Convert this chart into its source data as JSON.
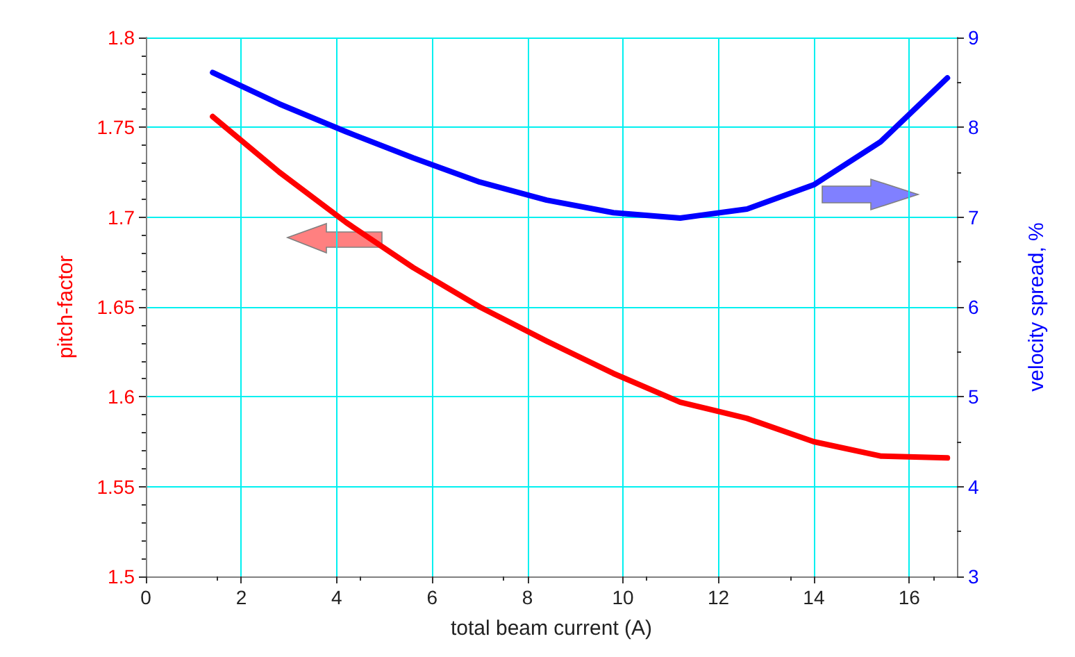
{
  "chart_data": {
    "type": "line",
    "xlabel": "total beam current (A)",
    "ylabel": "pitch-factor",
    "y2label": "velocity spread, %",
    "xlim": [
      0,
      17
    ],
    "xticks": [
      0,
      2,
      4,
      6,
      8,
      10,
      12,
      14,
      16
    ],
    "ylim": [
      1.5,
      1.8
    ],
    "yticks": [
      1.5,
      1.55,
      1.6,
      1.65,
      1.7,
      1.75,
      1.8
    ],
    "y2lim": [
      3,
      9
    ],
    "y2ticks": [
      3,
      4,
      5,
      6,
      7,
      8,
      9
    ],
    "grid": true,
    "marker": "none",
    "line_style": "solid",
    "series": [
      {
        "color": "#ff0000",
        "x": [
          1.4,
          2.8,
          4.2,
          5.6,
          7.0,
          8.4,
          9.8,
          11.2,
          12.6,
          14.0,
          15.4,
          16.8
        ],
        "values": [
          1.756,
          1.725,
          1.697,
          1.672,
          1.65,
          1.631,
          1.613,
          1.597,
          1.588,
          1.575,
          1.567,
          1.566
        ]
      },
      {
        "color": "#0000ff",
        "axis": "y2",
        "x": [
          1.4,
          2.8,
          4.2,
          5.6,
          7.0,
          8.4,
          9.8,
          11.2,
          12.6,
          14.0,
          15.4,
          16.8
        ],
        "values": [
          8.61,
          8.26,
          7.95,
          7.66,
          7.39,
          7.19,
          7.05,
          6.99,
          7.09,
          7.36,
          7.84,
          8.55
        ]
      }
    ]
  }
}
